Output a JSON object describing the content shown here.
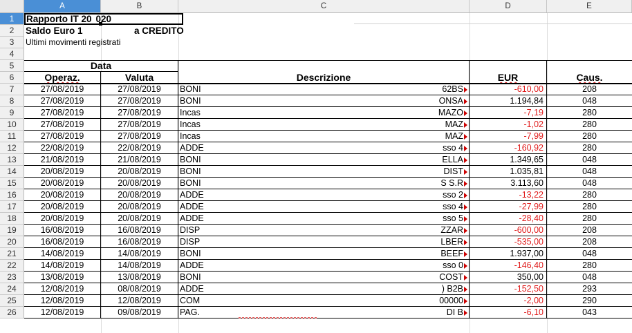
{
  "columns": [
    "A",
    "B",
    "C",
    "D",
    "E"
  ],
  "row_numbers": [
    "1",
    "2",
    "3",
    "4",
    "5",
    "6",
    "7",
    "8",
    "9",
    "10",
    "11",
    "12",
    "13",
    "14",
    "15",
    "16",
    "17",
    "18",
    "19",
    "20",
    "21",
    "22",
    "23",
    "24",
    "25",
    "26"
  ],
  "header": {
    "title": "Rapporto IT 20",
    "title_suffix": "020",
    "saldo_left": "Saldo Euro 1",
    "saldo_right": "a CREDITO",
    "subtitle": "Ultimi movimenti registrati"
  },
  "table_headers": {
    "data": "Data",
    "operaz": "Operaz.",
    "valuta": "Valuta",
    "descrizione": "Descrizione",
    "eur": "EUR",
    "caus": "Caus."
  },
  "rows": [
    {
      "op": "27/08/2019",
      "val": "27/08/2019",
      "d1": "BONI",
      "d2": "62BS",
      "eur": "-610,00",
      "caus": "208",
      "neg": true
    },
    {
      "op": "27/08/2019",
      "val": "27/08/2019",
      "d1": "BONI",
      "d2": "ONSA",
      "eur": "1.194,84",
      "caus": "048",
      "neg": false
    },
    {
      "op": "27/08/2019",
      "val": "27/08/2019",
      "d1": "Incas",
      "d2": "MAZO",
      "eur": "-7,19",
      "caus": "280",
      "neg": true
    },
    {
      "op": "27/08/2019",
      "val": "27/08/2019",
      "d1": "Incas",
      "d2": "MAZ",
      "eur": "-1,02",
      "caus": "280",
      "neg": true
    },
    {
      "op": "27/08/2019",
      "val": "27/08/2019",
      "d1": "Incas",
      "d2": "MAZ",
      "eur": "-7,99",
      "caus": "280",
      "neg": true
    },
    {
      "op": "22/08/2019",
      "val": "22/08/2019",
      "d1": "ADDE",
      "d2": "sso 4",
      "eur": "-160,92",
      "caus": "280",
      "neg": true
    },
    {
      "op": "21/08/2019",
      "val": "21/08/2019",
      "d1": "BONI",
      "d2": "ELLA",
      "eur": "1.349,65",
      "caus": "048",
      "neg": false
    },
    {
      "op": "20/08/2019",
      "val": "20/08/2019",
      "d1": "BONI",
      "d2": "DIST",
      "eur": "1.035,81",
      "caus": "048",
      "neg": false
    },
    {
      "op": "20/08/2019",
      "val": "20/08/2019",
      "d1": "BONI",
      "d2": "S S.R",
      "eur": "3.113,60",
      "caus": "048",
      "neg": false
    },
    {
      "op": "20/08/2019",
      "val": "20/08/2019",
      "d1": "ADDE",
      "d2": "sso 2",
      "eur": "-13,22",
      "caus": "280",
      "neg": true
    },
    {
      "op": "20/08/2019",
      "val": "20/08/2019",
      "d1": "ADDE",
      "d2": "sso 4",
      "eur": "-27,99",
      "caus": "280",
      "neg": true
    },
    {
      "op": "20/08/2019",
      "val": "20/08/2019",
      "d1": "ADDE",
      "d2": "sso 5",
      "eur": "-28,40",
      "caus": "280",
      "neg": true
    },
    {
      "op": "16/08/2019",
      "val": "16/08/2019",
      "d1": "DISP",
      "d2": "ZZAR",
      "eur": "-600,00",
      "caus": "208",
      "neg": true
    },
    {
      "op": "16/08/2019",
      "val": "16/08/2019",
      "d1": "DISP",
      "d2": "LBER",
      "eur": "-535,00",
      "caus": "208",
      "neg": true
    },
    {
      "op": "14/08/2019",
      "val": "14/08/2019",
      "d1": "BONI",
      "d2": "BEEF",
      "eur": "1.937,00",
      "caus": "048",
      "neg": false
    },
    {
      "op": "14/08/2019",
      "val": "14/08/2019",
      "d1": "ADDE",
      "d2": "sso 0",
      "eur": "-146,40",
      "caus": "280",
      "neg": true
    },
    {
      "op": "13/08/2019",
      "val": "13/08/2019",
      "d1": "BONI",
      "d2": "COST",
      "eur": "350,00",
      "caus": "048",
      "neg": false
    },
    {
      "op": "12/08/2019",
      "val": "08/08/2019",
      "d1": "ADDE",
      "d2": ") B2B",
      "eur": "-152,50",
      "caus": "293",
      "neg": true
    },
    {
      "op": "12/08/2019",
      "val": "12/08/2019",
      "d1": "COM",
      "d2": "00000",
      "eur": "-2,00",
      "caus": "290",
      "neg": true
    },
    {
      "op": "12/08/2019",
      "val": "09/08/2019",
      "d1": "PAG.",
      "d2": "DI B",
      "eur": "-6,10",
      "caus": "043",
      "neg": true
    }
  ],
  "colors": {
    "negative": "#e01b1b",
    "selected_header": "#4a8fd6"
  }
}
